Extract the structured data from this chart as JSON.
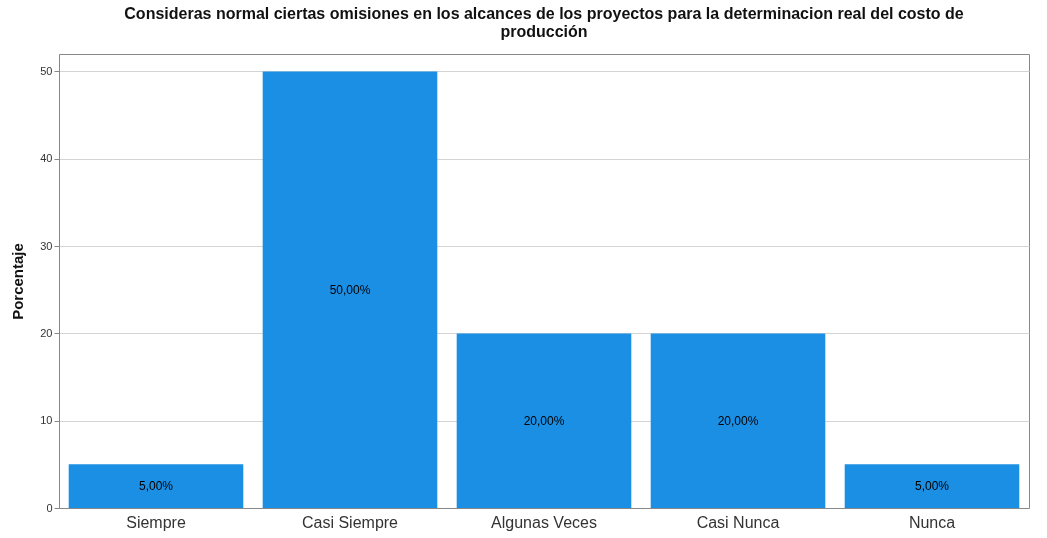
{
  "chart_data": {
    "type": "bar",
    "title": "Consideras normal ciertas omisiones en los alcances de los proyectos para la determinacion real del costo de producción",
    "ylabel": "Porcentaje",
    "categories": [
      "Siempre",
      "Casi Siempre",
      "Algunas Veces",
      "Casi Nunca",
      "Nunca"
    ],
    "values": [
      5,
      50,
      20,
      20,
      5
    ],
    "value_labels": [
      "5,00%",
      "50,00%",
      "20,00%",
      "20,00%",
      "5,00%"
    ],
    "color": "#1a8fe3",
    "ylim": [
      0,
      52
    ],
    "yticks": [
      0,
      10,
      20,
      30,
      40,
      50
    ],
    "grid": "y"
  }
}
